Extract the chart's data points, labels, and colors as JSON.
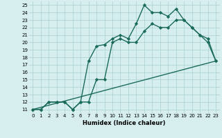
{
  "xlabel": "Humidex (Indice chaleur)",
  "background_color": "#d6eeee",
  "line_color": "#1a6b5a",
  "grid_color": "#b0d4d4",
  "xlim": [
    -0.5,
    23.5
  ],
  "ylim": [
    10.5,
    25.5
  ],
  "xticks": [
    0,
    1,
    2,
    3,
    4,
    5,
    6,
    7,
    8,
    9,
    10,
    11,
    12,
    13,
    14,
    15,
    16,
    17,
    18,
    19,
    20,
    21,
    22,
    23
  ],
  "yticks": [
    11,
    12,
    13,
    14,
    15,
    16,
    17,
    18,
    19,
    20,
    21,
    22,
    23,
    24,
    25
  ],
  "line1_x": [
    0,
    1,
    2,
    3,
    4,
    5,
    6,
    7,
    8,
    9,
    10,
    11,
    12,
    13,
    14,
    15,
    16,
    17,
    18,
    19,
    20,
    21,
    22,
    23
  ],
  "line1_y": [
    11,
    11,
    12,
    12,
    12,
    11,
    12,
    12,
    15,
    15,
    20,
    20.5,
    20,
    20,
    21.5,
    22.5,
    22,
    22,
    23,
    23,
    22,
    21,
    20.5,
    17.5
  ],
  "line2_x": [
    0,
    1,
    2,
    3,
    4,
    5,
    6,
    7,
    8,
    9,
    10,
    11,
    12,
    13,
    14,
    15,
    16,
    17,
    18,
    19,
    20,
    21,
    22,
    23
  ],
  "line2_y": [
    11,
    11,
    12,
    12,
    12,
    11,
    12,
    17.5,
    19.5,
    19.7,
    20.5,
    21,
    20.5,
    22.5,
    25,
    24,
    24,
    23.5,
    24.5,
    23,
    22,
    21,
    20,
    17.5
  ],
  "line3_x": [
    0,
    23
  ],
  "line3_y": [
    11,
    17.5
  ],
  "marker": "D",
  "markersize": 2.2,
  "linewidth": 1.0,
  "tick_fontsize": 5.0,
  "xlabel_fontsize": 6.0
}
